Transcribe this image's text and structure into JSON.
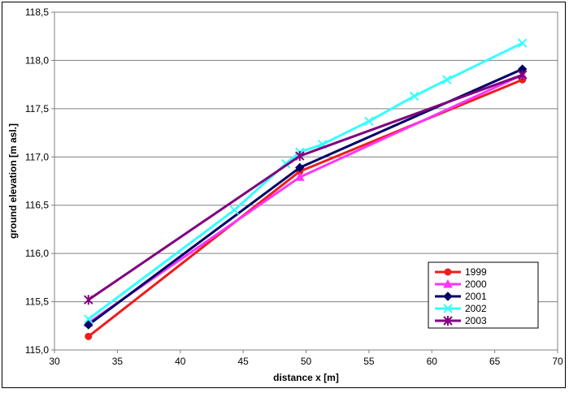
{
  "chart_data": {
    "type": "line",
    "title": "",
    "xlabel": "distance x [m]",
    "ylabel": "ground elevation [m asl.]",
    "xlim": [
      30,
      70
    ],
    "ylim": [
      115.0,
      118.5
    ],
    "x_ticks": [
      "30",
      "35",
      "40",
      "45",
      "50",
      "55",
      "60",
      "65",
      "70"
    ],
    "y_ticks": [
      "115,0",
      "115,5",
      "116,0",
      "116,5",
      "117,0",
      "117,5",
      "118,0",
      "118,5"
    ],
    "grid": "horizontal",
    "legend_position": "bottom-right",
    "series": [
      {
        "name": "1999",
        "color": "#ee1c1c",
        "marker": "circle",
        "points": [
          [
            32.7,
            115.14
          ],
          [
            49.5,
            116.85
          ],
          [
            67.2,
            117.8
          ]
        ]
      },
      {
        "name": "2000",
        "color": "#ff33ff",
        "marker": "triangle",
        "points": [
          [
            32.7,
            115.28
          ],
          [
            49.5,
            116.79
          ],
          [
            67.2,
            117.85
          ]
        ]
      },
      {
        "name": "2001",
        "color": "#000066",
        "marker": "diamond",
        "points": [
          [
            32.7,
            115.26
          ],
          [
            49.5,
            116.89
          ],
          [
            67.2,
            117.91
          ]
        ]
      },
      {
        "name": "2002",
        "color": "#33ffff",
        "marker": "x",
        "points": [
          [
            32.7,
            115.32
          ],
          [
            44.3,
            116.45
          ],
          [
            48.4,
            116.93
          ],
          [
            49.5,
            117.05
          ],
          [
            51.3,
            117.13
          ],
          [
            55.0,
            117.37
          ],
          [
            58.6,
            117.63
          ],
          [
            61.2,
            117.8
          ],
          [
            67.2,
            118.18
          ]
        ]
      },
      {
        "name": "2003",
        "color": "#800080",
        "marker": "asterisk",
        "points": [
          [
            32.7,
            115.52
          ],
          [
            49.5,
            117.01
          ],
          [
            67.2,
            117.85
          ]
        ]
      }
    ]
  }
}
